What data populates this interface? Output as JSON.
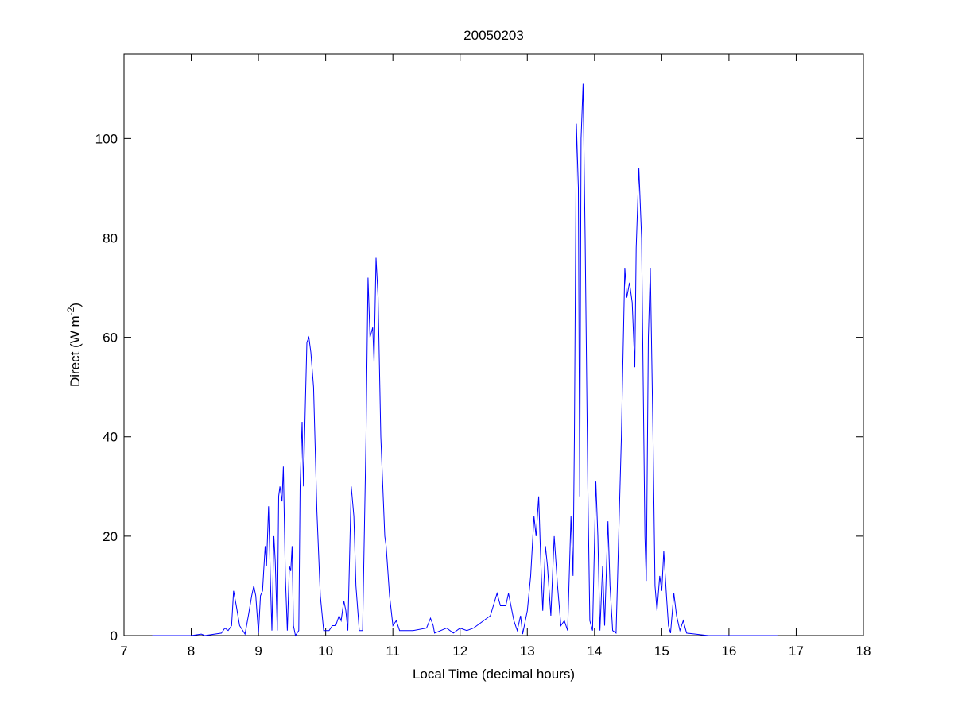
{
  "chart_data": {
    "type": "line",
    "title": "20050203",
    "xlabel": "Local Time (decimal hours)",
    "ylabel": {
      "base": "Direct (W m",
      "sup": "-2",
      "end": ")"
    },
    "xlim": [
      7,
      18
    ],
    "ylim": [
      0,
      117
    ],
    "xticks": [
      7,
      8,
      9,
      10,
      11,
      12,
      13,
      14,
      15,
      16,
      17,
      18
    ],
    "yticks": [
      0,
      20,
      40,
      60,
      80,
      100
    ],
    "grid": false,
    "line_color": "#0000ff",
    "series": [
      {
        "x": [
          7.42,
          8.0,
          8.15,
          8.2,
          8.45,
          8.5,
          8.55,
          8.6,
          8.63,
          8.67,
          8.72,
          8.8,
          8.85,
          8.9,
          8.93,
          8.96,
          9.0,
          9.03,
          9.06,
          9.1,
          9.12,
          9.15,
          9.18,
          9.2,
          9.23,
          9.25,
          9.28,
          9.3,
          9.32,
          9.35,
          9.37,
          9.4,
          9.43,
          9.46,
          9.48,
          9.5,
          9.52,
          9.55,
          9.6,
          9.62,
          9.65,
          9.67,
          9.7,
          9.72,
          9.75,
          9.78,
          9.82,
          9.87,
          9.92,
          9.97,
          10.05,
          10.1,
          10.15,
          10.2,
          10.23,
          10.27,
          10.3,
          10.33,
          10.38,
          10.42,
          10.45,
          10.5,
          10.55,
          10.6,
          10.63,
          10.66,
          10.7,
          10.72,
          10.75,
          10.78,
          10.82,
          10.88,
          10.9,
          10.95,
          11.0,
          11.05,
          11.1,
          11.3,
          11.5,
          11.56,
          11.6,
          11.62,
          11.8,
          11.9,
          12.0,
          12.1,
          12.2,
          12.3,
          12.45,
          12.55,
          12.6,
          12.68,
          12.72,
          12.8,
          12.85,
          12.9,
          12.93,
          13.0,
          13.05,
          13.1,
          13.13,
          13.17,
          13.2,
          13.23,
          13.27,
          13.3,
          13.35,
          13.4,
          13.45,
          13.5,
          13.55,
          13.6,
          13.65,
          13.68,
          13.7,
          13.73,
          13.76,
          13.78,
          13.8,
          13.83,
          13.86,
          13.9,
          13.93,
          13.97,
          14.02,
          14.05,
          14.08,
          14.12,
          14.15,
          14.2,
          14.23,
          14.27,
          14.32,
          14.4,
          14.45,
          14.48,
          14.52,
          14.56,
          14.6,
          14.62,
          14.66,
          14.7,
          14.75,
          14.77,
          14.8,
          14.83,
          14.87,
          14.9,
          14.93,
          14.97,
          15.0,
          15.03,
          15.07,
          15.1,
          15.13,
          15.18,
          15.22,
          15.27,
          15.32,
          15.37,
          15.5,
          15.7,
          16.72
        ],
        "y": [
          0,
          0,
          0.3,
          0,
          0.5,
          1.5,
          1,
          2,
          9,
          6,
          2,
          0.3,
          4,
          8,
          10,
          8,
          0.5,
          8,
          9,
          18,
          14,
          26,
          10,
          1,
          20,
          15,
          1,
          28,
          30,
          27,
          34,
          12,
          1,
          14,
          13,
          18,
          2,
          0,
          1,
          30,
          43,
          30,
          48,
          59,
          60,
          57,
          50,
          25,
          8,
          1,
          1,
          2,
          2,
          4,
          3,
          7,
          5,
          1,
          30,
          24,
          10,
          1,
          1,
          40,
          72,
          60,
          62,
          55,
          76,
          68,
          40,
          20,
          18,
          8,
          2,
          3,
          1,
          1,
          1.5,
          3.5,
          2,
          0.5,
          1.5,
          0.5,
          1.5,
          1,
          1.5,
          2.5,
          4,
          8.5,
          6,
          6,
          8.5,
          3,
          1,
          4,
          0.3,
          5,
          12,
          24,
          20,
          28,
          15,
          5,
          18,
          14,
          4,
          20,
          10,
          2,
          3,
          1,
          24,
          12,
          40,
          103,
          90,
          28,
          100,
          111,
          80,
          30,
          3,
          1,
          31,
          20,
          1,
          14,
          2,
          23,
          10,
          1,
          0.5,
          40,
          74,
          68,
          71,
          67,
          54,
          78,
          94,
          80,
          20,
          11,
          60,
          74,
          40,
          10,
          5,
          12,
          9,
          17,
          8,
          2,
          0.5,
          8.5,
          4,
          1,
          3,
          0.5,
          0.3,
          0,
          0
        ]
      }
    ]
  }
}
